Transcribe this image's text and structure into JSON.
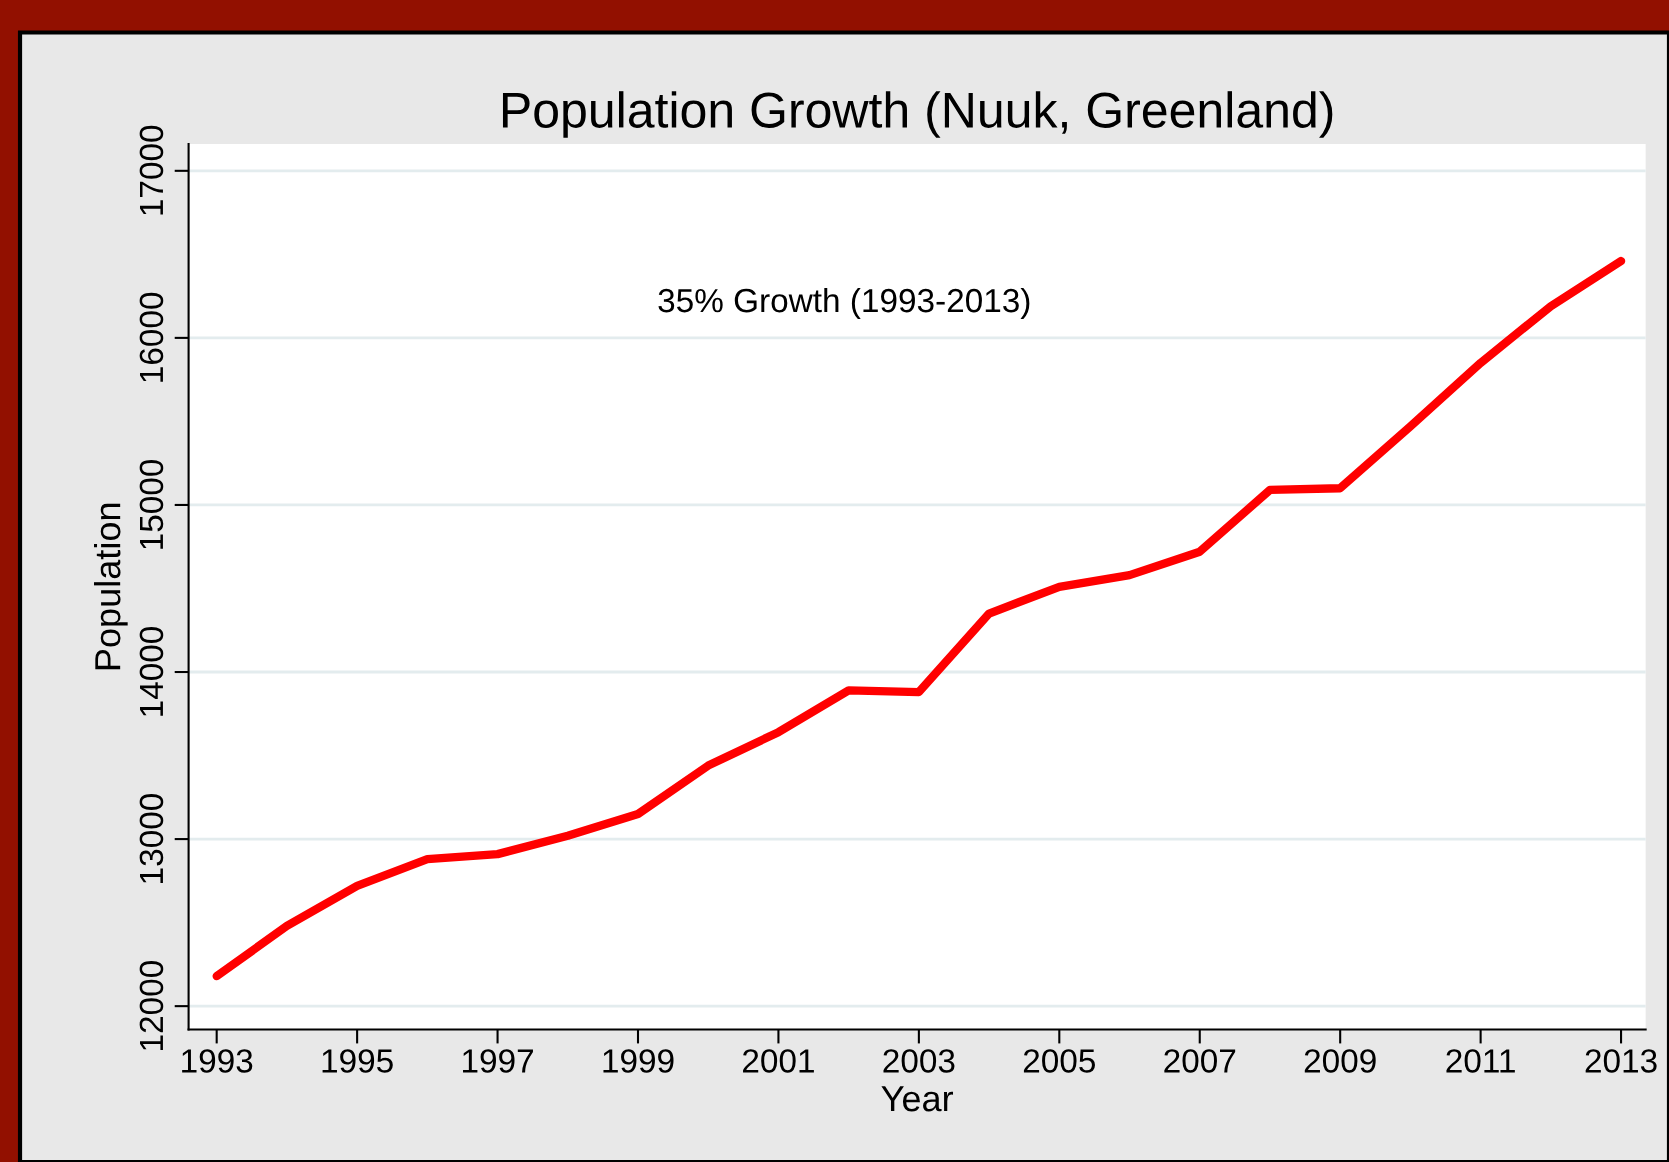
{
  "chart_data": {
    "type": "line",
    "title": "Population Growth (Nuuk, Greenland)",
    "xlabel": "Year",
    "ylabel": "Population",
    "annotations": [
      "35% Growth (1993-2013)"
    ],
    "x": [
      1993,
      1994,
      1995,
      1996,
      1997,
      1998,
      1999,
      2000,
      2001,
      2002,
      2003,
      2004,
      2005,
      2006,
      2007,
      2008,
      2009,
      2010,
      2011,
      2012,
      2013
    ],
    "series": [
      {
        "color": "#ff0000",
        "values": [
          12180,
          12480,
          12720,
          12880,
          12910,
          13020,
          13150,
          13440,
          13640,
          13890,
          13880,
          14350,
          14510,
          14580,
          14720,
          15090,
          15100,
          15470,
          15850,
          16190,
          16460
        ]
      }
    ],
    "xlim": [
      1992.6,
      2013.35
    ],
    "xticks": [
      1993,
      1995,
      1997,
      1999,
      2001,
      2003,
      2005,
      2007,
      2009,
      2011,
      2013
    ],
    "ylim": [
      11860,
      17160
    ],
    "yticks": [
      12000,
      13000,
      14000,
      15000,
      16000,
      17000
    ],
    "grid": "y",
    "legend": false,
    "marker": "none",
    "line_style": "solid"
  }
}
